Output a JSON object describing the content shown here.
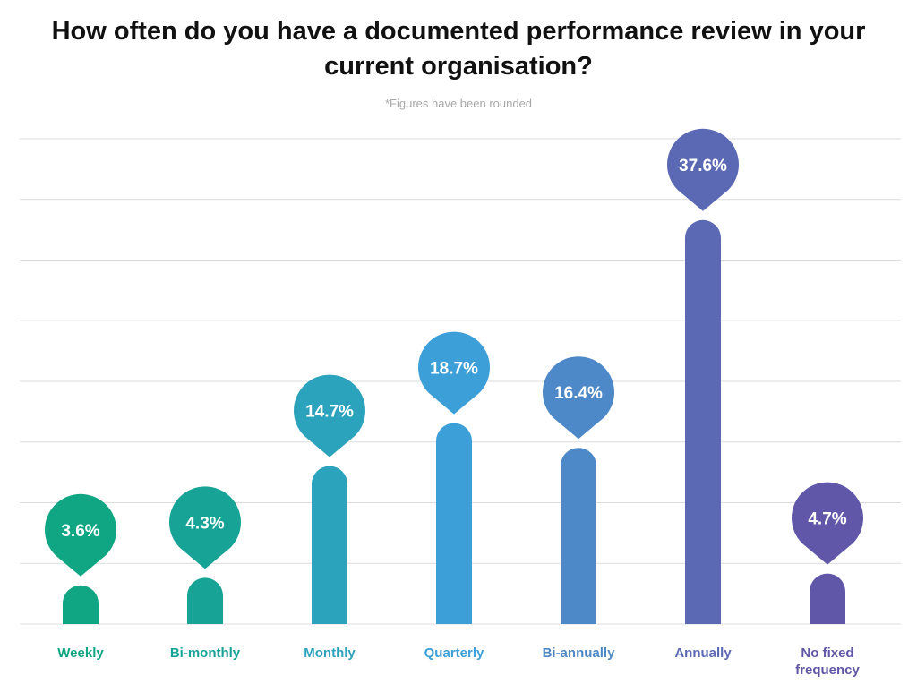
{
  "chart_data": {
    "type": "bar",
    "title": "How often do you have a documented performance review in your current organisation?",
    "title_lines": [
      "How often do you have a documented performance review in your",
      "current organisation?"
    ],
    "subtitle": "*Figures have been rounded",
    "categories": [
      "Weekly",
      "Bi-monthly",
      "Monthly",
      "Quarterly",
      "Bi-annually",
      "Annually",
      "No fixed frequency"
    ],
    "category_lines": [
      [
        "Weekly"
      ],
      [
        "Bi-monthly"
      ],
      [
        "Monthly"
      ],
      [
        "Quarterly"
      ],
      [
        "Bi-annually"
      ],
      [
        "Annually"
      ],
      [
        "No fixed",
        "frequency"
      ]
    ],
    "values": [
      3.6,
      4.3,
      14.7,
      18.7,
      16.4,
      37.6,
      4.7
    ],
    "value_labels": [
      "3.6%",
      "4.3%",
      "14.7%",
      "18.7%",
      "16.4%",
      "37.6%",
      "4.7%"
    ],
    "colors": [
      "#11a683",
      "#17a395",
      "#2ca3bc",
      "#3c9fd8",
      "#4d88c8",
      "#5b68b4",
      "#6157a8"
    ],
    "ylim": [
      0,
      40
    ],
    "grid": true,
    "xlabel": "",
    "ylabel": ""
  }
}
